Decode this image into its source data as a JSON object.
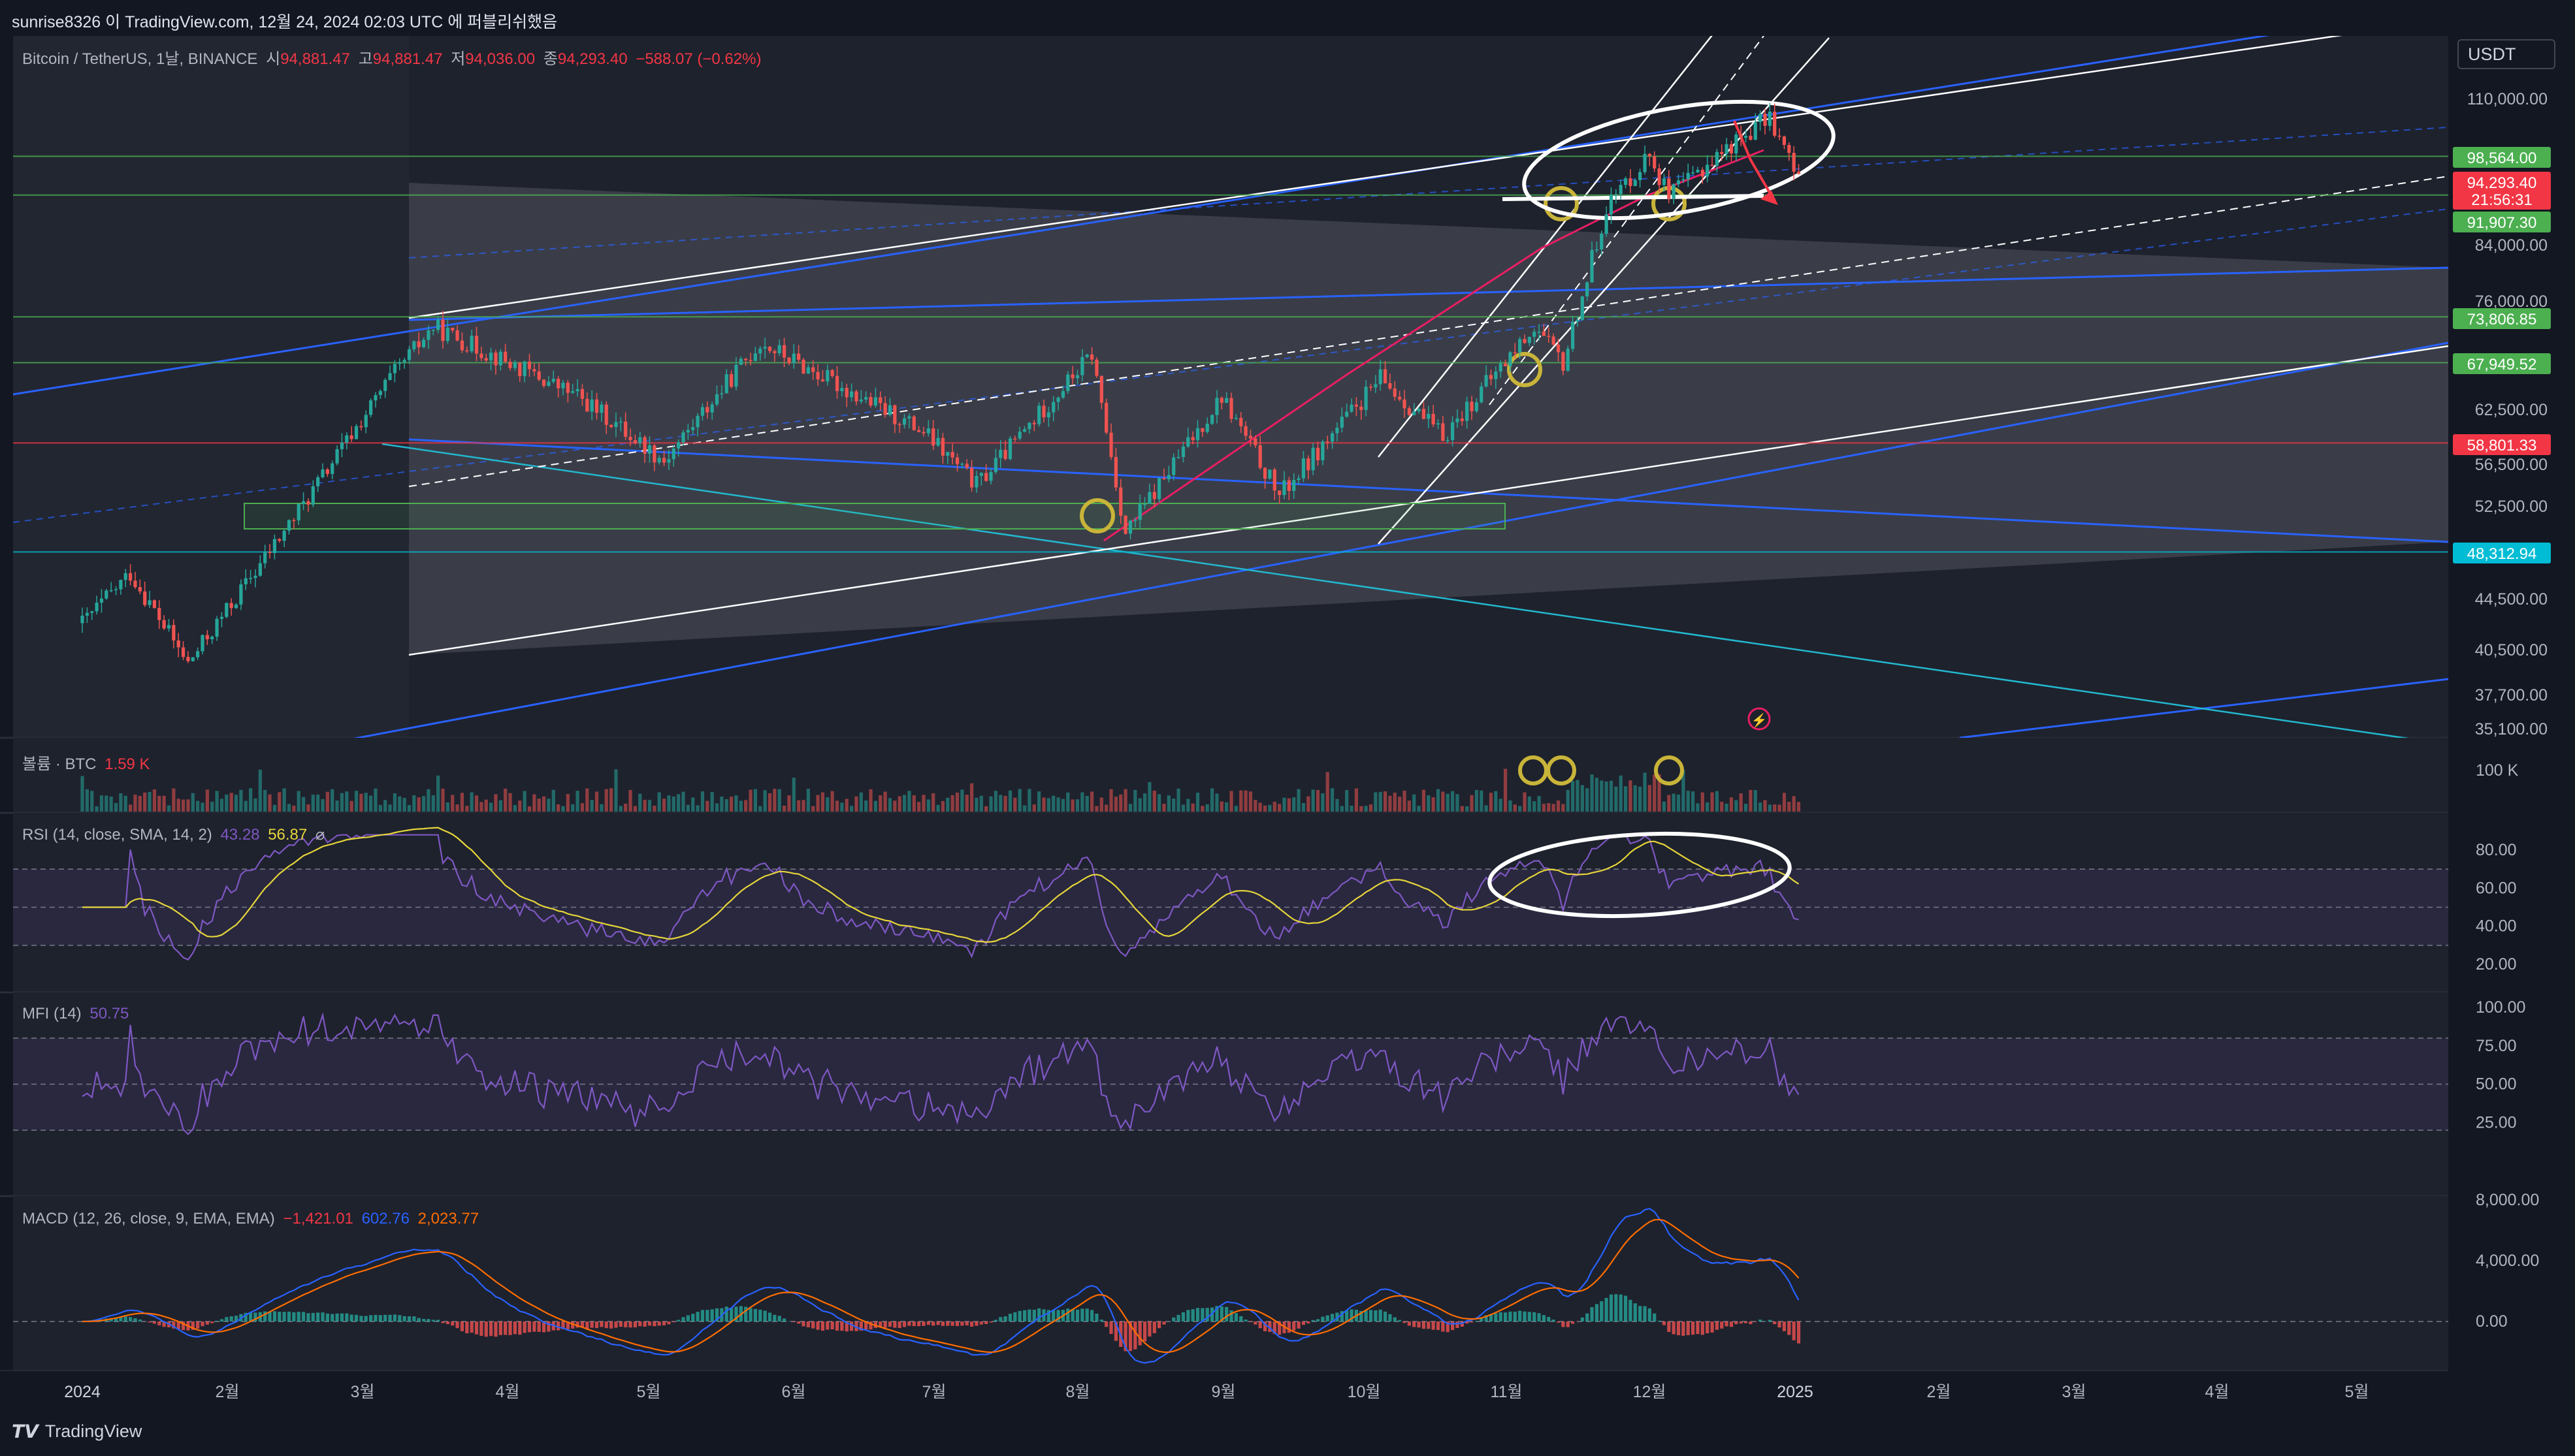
{
  "header": {
    "title": "sunrise8326 이 TradingView.com, 12월 24, 2024 02:03 UTC 에 퍼블리쉬했음"
  },
  "legend_main": {
    "symbol": "Bitcoin / TetherUS, 1날, BINANCE",
    "open_label": "시",
    "open": "94,881.47",
    "high_label": "고",
    "high": "94,881.47",
    "low_label": "저",
    "low": "94,036.00",
    "close_label": "종",
    "close": "94,293.40",
    "change": "−588.07 (−0.62%)"
  },
  "currency": "USDT",
  "legend_volume": {
    "label": "볼륨 · BTC",
    "value": "1.59 K"
  },
  "legend_rsi": {
    "label": "RSI (14, close, SMA, 14, 2)",
    "rsi": "43.28",
    "sma": "56.87",
    "extra": "⌀"
  },
  "legend_mfi": {
    "label": "MFI (14)",
    "value": "50.75"
  },
  "legend_macd": {
    "label": "MACD (12, 26, close, 9, EMA, EMA)",
    "hist": "−1,421.01",
    "macd": "602.76",
    "signal": "2,023.77"
  },
  "brand": "TradingView",
  "colors": {
    "bg": "#131722",
    "up": "#26a69a",
    "down": "#ef5350",
    "channel_blue": "#2962ff",
    "rsi": "#7e57c2",
    "rsi_sma": "#e6d53a",
    "macd": "#2962ff",
    "signal": "#ff6d00"
  },
  "chart_data": [
    {
      "type": "candlestick",
      "title": "Bitcoin / TetherUS, 1날, BINANCE",
      "x_tick_labels": [
        "2024",
        "2월",
        "3월",
        "4월",
        "5월",
        "6월",
        "7월",
        "8월",
        "9월",
        "10월",
        "11월",
        "12월",
        "2025",
        "2월",
        "3월",
        "4월",
        "5월"
      ],
      "y_scale": "log",
      "y_tick_labels": [
        "110,000.00",
        "84,000.00",
        "76,000.00",
        "62,500.00",
        "56,500.00",
        "52,500.00",
        "44,500.00",
        "40,500.00",
        "37,700.00",
        "35,100.00"
      ],
      "price_tags": [
        {
          "label": "98,564.00",
          "color": "#4caf50"
        },
        {
          "label": "94,293.40",
          "color": "#f23645"
        },
        {
          "label": "21:56:31",
          "color": "#f23645"
        },
        {
          "label": "91,907.30",
          "color": "#4caf50"
        },
        {
          "label": "73,806.85",
          "color": "#4caf50"
        },
        {
          "label": "67,949.52",
          "color": "#4caf50"
        },
        {
          "label": "58,801.33",
          "color": "#f23645"
        },
        {
          "label": "48,312.94",
          "color": "#00bcd4"
        }
      ],
      "approx_close_path": [
        {
          "t": "2024-01-01",
          "close": 42500
        },
        {
          "t": "2024-01-11",
          "close": 46500
        },
        {
          "t": "2024-01-23",
          "close": 39500
        },
        {
          "t": "2024-02-15",
          "close": 52000
        },
        {
          "t": "2024-03-05",
          "close": 66000
        },
        {
          "t": "2024-03-14",
          "close": 72500
        },
        {
          "t": "2024-04-13",
          "close": 64000
        },
        {
          "t": "2024-05-01",
          "close": 57000
        },
        {
          "t": "2024-05-21",
          "close": 70500
        },
        {
          "t": "2024-06-24",
          "close": 60000
        },
        {
          "t": "2024-07-05",
          "close": 54500
        },
        {
          "t": "2024-07-29",
          "close": 69000
        },
        {
          "t": "2024-08-05",
          "close": 50000
        },
        {
          "t": "2024-08-25",
          "close": 64000
        },
        {
          "t": "2024-09-06",
          "close": 53500
        },
        {
          "t": "2024-09-27",
          "close": 66000
        },
        {
          "t": "2024-10-10",
          "close": 59500
        },
        {
          "t": "2024-10-29",
          "close": 72500
        },
        {
          "t": "2024-11-04",
          "close": 67800
        },
        {
          "t": "2024-11-13",
          "close": 90000
        },
        {
          "t": "2024-11-22",
          "close": 99000
        },
        {
          "t": "2024-11-26",
          "close": 91500
        },
        {
          "t": "2024-12-05",
          "close": 98000
        },
        {
          "t": "2024-12-17",
          "close": 106000
        },
        {
          "t": "2024-12-23",
          "close": 94293.4
        }
      ]
    },
    {
      "type": "bar",
      "title": "볼륨 · BTC",
      "y_tick_labels": [
        "100 K"
      ]
    },
    {
      "type": "line",
      "title": "RSI (14, close, SMA, 14, 2)",
      "y_tick_labels": [
        "80.00",
        "60.00",
        "40.00",
        "20.00"
      ],
      "series": [
        {
          "name": "RSI",
          "last": 43.28
        },
        {
          "name": "SMA",
          "last": 56.87
        }
      ]
    },
    {
      "type": "line",
      "title": "MFI (14)",
      "y_tick_labels": [
        "100.00",
        "75.00",
        "50.00",
        "25.00"
      ],
      "series": [
        {
          "name": "MFI",
          "last": 50.75
        }
      ]
    },
    {
      "type": "line",
      "title": "MACD (12, 26, close, 9, EMA, EMA)",
      "y_tick_labels": [
        "8,000.00",
        "4,000.00",
        "0.00"
      ],
      "series": [
        {
          "name": "Histogram",
          "last": -1421.01
        },
        {
          "name": "MACD",
          "last": 602.76
        },
        {
          "name": "Signal",
          "last": 2023.77
        }
      ]
    }
  ]
}
